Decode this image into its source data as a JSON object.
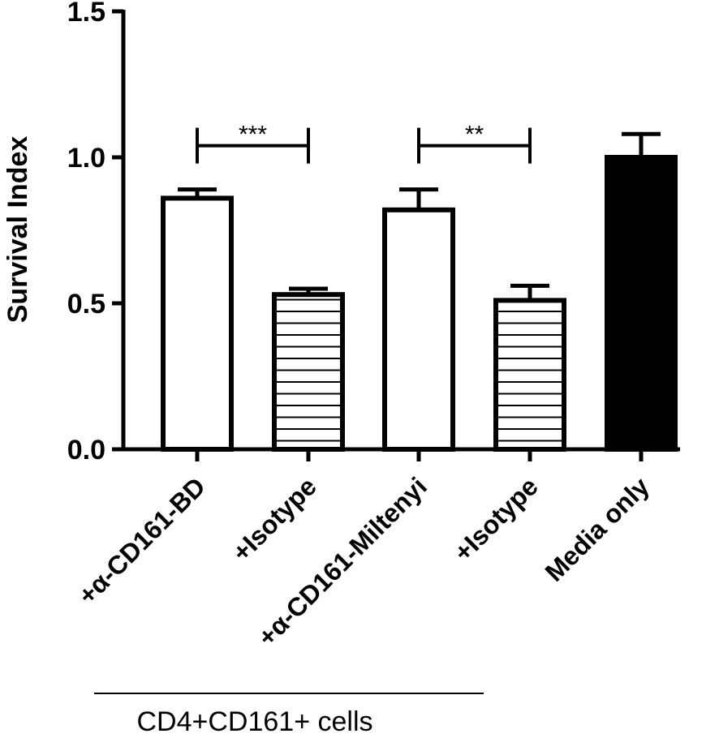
{
  "chart_data": {
    "type": "bar",
    "ylabel": "Survival Index",
    "ylim": [
      0,
      1.5
    ],
    "yticks": [
      "0.0",
      "0.5",
      "1.0",
      "1.5"
    ],
    "categories": [
      "+α-CD161-BD",
      "+Isotype",
      "+α-CD161-Miltenyi",
      "+Isotype",
      "Media only"
    ],
    "values": [
      0.86,
      0.53,
      0.82,
      0.51,
      1.0
    ],
    "errors": [
      0.03,
      0.02,
      0.07,
      0.05,
      0.08
    ],
    "fills": [
      "white",
      "hatched",
      "white",
      "hatched",
      "black"
    ],
    "significance": [
      {
        "from": 0,
        "to": 1,
        "label": "***",
        "y": 1.04
      },
      {
        "from": 2,
        "to": 3,
        "label": "**",
        "y": 1.04
      }
    ],
    "group_label": "CD4+CD161+ cells",
    "group_span": [
      0,
      3
    ]
  }
}
